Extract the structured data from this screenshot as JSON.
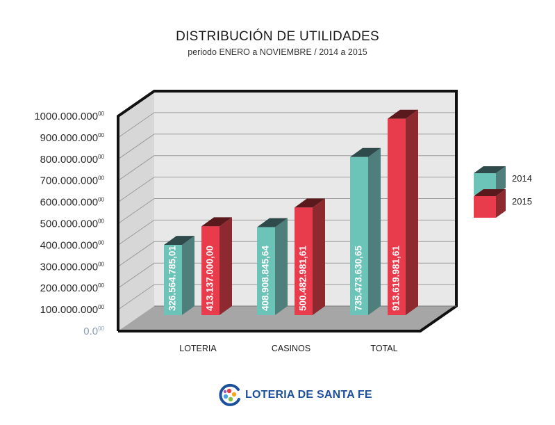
{
  "chart_data": {
    "type": "bar",
    "title": "DISTRIBUCIÓN DE UTILIDADES",
    "subtitle": "periodo ENERO a NOVIEMBRE / 2014 a 2015",
    "categories": [
      "LOTERIA",
      "CASINOS",
      "TOTAL"
    ],
    "series": [
      {
        "name": "2014",
        "color": "#6cc3b7",
        "values": [
          326564785.01,
          408908845.64,
          735473630.65
        ],
        "labels": [
          "326.564.785,01",
          "408.908.845,64",
          "735.473.630,65"
        ]
      },
      {
        "name": "2015",
        "color": "#e83b4c",
        "values": [
          413137000.0,
          500482981.61,
          913619981.61
        ],
        "labels": [
          "413.137.000,00",
          "500.482.981,61",
          "913.619.981,61"
        ]
      }
    ],
    "ylim": [
      0,
      1000000000
    ],
    "yticks": [
      {
        "value": 0,
        "main": "0.0",
        "sup": "00"
      },
      {
        "value": 100000000,
        "main": "100.000.000",
        "sup": "00"
      },
      {
        "value": 200000000,
        "main": "200.000.000",
        "sup": "00"
      },
      {
        "value": 300000000,
        "main": "300.000.000",
        "sup": "00"
      },
      {
        "value": 400000000,
        "main": "400.000.000",
        "sup": "00"
      },
      {
        "value": 500000000,
        "main": "500.000.000",
        "sup": "00"
      },
      {
        "value": 600000000,
        "main": "600.000.000",
        "sup": "00"
      },
      {
        "value": 700000000,
        "main": "700.000.000",
        "sup": "00"
      },
      {
        "value": 800000000,
        "main": "800.000.000",
        "sup": "00"
      },
      {
        "value": 900000000,
        "main": "900.000.000",
        "sup": "00"
      },
      {
        "value": 1000000000,
        "main": "1000.000.000",
        "sup": "00"
      }
    ],
    "grid": true,
    "legend_position": "right",
    "colors": {
      "teal_front": "#6cc3b7",
      "teal_side": "#4f7f7d",
      "teal_top": "#2f4a4a",
      "red_front": "#e83b4c",
      "red_side": "#8e2a2f",
      "red_top": "#5a1a1d"
    }
  },
  "logo": {
    "text": "LOTERIA DE SANTA FE"
  }
}
